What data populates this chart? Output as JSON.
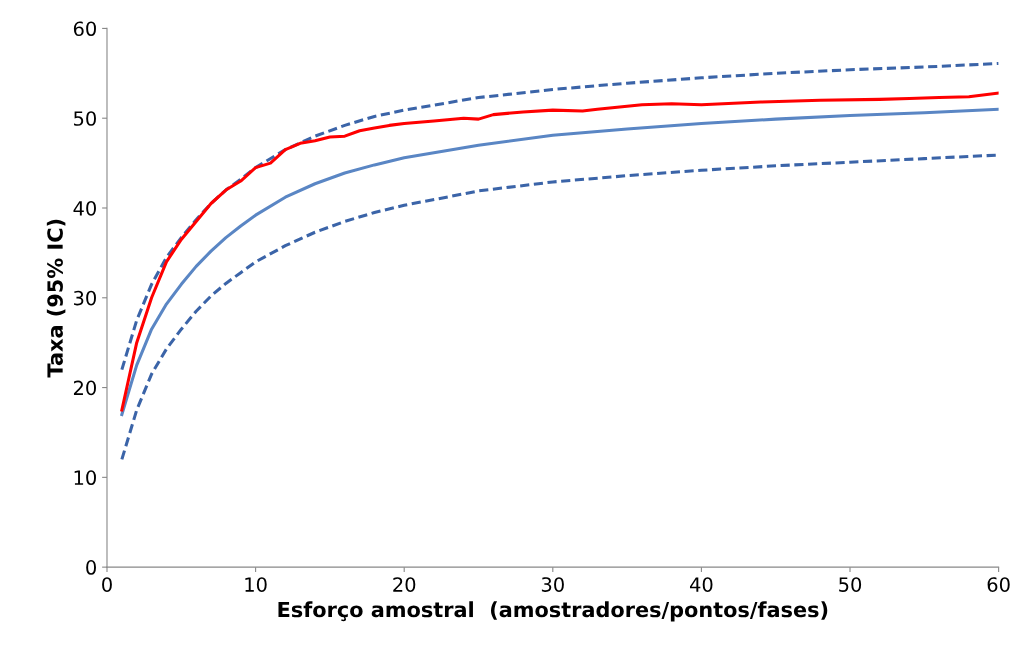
{
  "chart_data": {
    "type": "line",
    "xlabel": "Esforço amostral  (amostradores/pontos/fases)",
    "ylabel": "Taxa (95% IC)",
    "xlim": [
      0,
      60
    ],
    "xticks": [
      0,
      10,
      20,
      30,
      40,
      50,
      60
    ],
    "ylim": [
      0,
      60
    ],
    "yticks": [
      0,
      10,
      20,
      30,
      40,
      50,
      60
    ],
    "grid": false,
    "series": [
      {
        "color": "#3b64a8",
        "line_style": "dashed",
        "x": [
          1,
          2,
          3,
          4,
          5,
          6,
          7,
          8,
          9,
          10,
          12,
          14,
          16,
          18,
          20,
          25,
          30,
          35,
          40,
          45,
          50,
          55,
          60
        ],
        "values": [
          12,
          17.5,
          21.5,
          24.3,
          26.5,
          28.5,
          30.2,
          31.6,
          32.8,
          34,
          35.8,
          37.3,
          38.5,
          39.5,
          40.3,
          41.9,
          42.9,
          43.6,
          44.2,
          44.7,
          45.1,
          45.5,
          45.9
        ]
      },
      {
        "color": "#3b64a8",
        "line_style": "dashed",
        "x": [
          1,
          2,
          3,
          4,
          5,
          6,
          7,
          8,
          9,
          10,
          12,
          14,
          16,
          18,
          20,
          25,
          30,
          35,
          40,
          45,
          50,
          55,
          60
        ],
        "values": [
          22,
          27.5,
          31.5,
          34.5,
          36.7,
          38.7,
          40.5,
          42,
          43.2,
          44.5,
          46.5,
          48,
          49.2,
          50.2,
          50.9,
          52.3,
          53.2,
          53.9,
          54.5,
          55,
          55.4,
          55.7,
          56.1
        ]
      },
      {
        "color": "#5a86c4",
        "line_style": "solid",
        "x": [
          1,
          2,
          3,
          4,
          5,
          6,
          7,
          8,
          9,
          10,
          12,
          14,
          16,
          18,
          20,
          25,
          30,
          35,
          40,
          45,
          50,
          55,
          60
        ],
        "values": [
          17,
          22.5,
          26.5,
          29.3,
          31.5,
          33.5,
          35.2,
          36.7,
          38,
          39.2,
          41.2,
          42.7,
          43.9,
          44.8,
          45.6,
          47,
          48.1,
          48.8,
          49.4,
          49.9,
          50.3,
          50.6,
          51
        ]
      },
      {
        "color": "#ff0000",
        "line_style": "solid",
        "x": [
          1,
          2,
          3,
          4,
          5,
          6,
          7,
          8,
          9,
          10,
          11,
          12,
          13,
          14,
          15,
          16,
          17,
          18,
          19,
          20,
          22,
          24,
          25,
          26,
          28,
          30,
          32,
          33,
          36,
          38,
          40,
          44,
          48,
          52,
          54,
          56,
          58,
          60
        ],
        "values": [
          17.5,
          25,
          30,
          34,
          36.5,
          38.5,
          40.5,
          42,
          43,
          44.5,
          45,
          46.5,
          47.2,
          47.5,
          47.9,
          48,
          48.6,
          48.9,
          49.2,
          49.4,
          49.7,
          50,
          49.9,
          50.4,
          50.7,
          50.9,
          50.8,
          51,
          51.5,
          51.6,
          51.5,
          51.8,
          52,
          52.1,
          52.2,
          52.3,
          52.4,
          52.8
        ]
      }
    ]
  }
}
